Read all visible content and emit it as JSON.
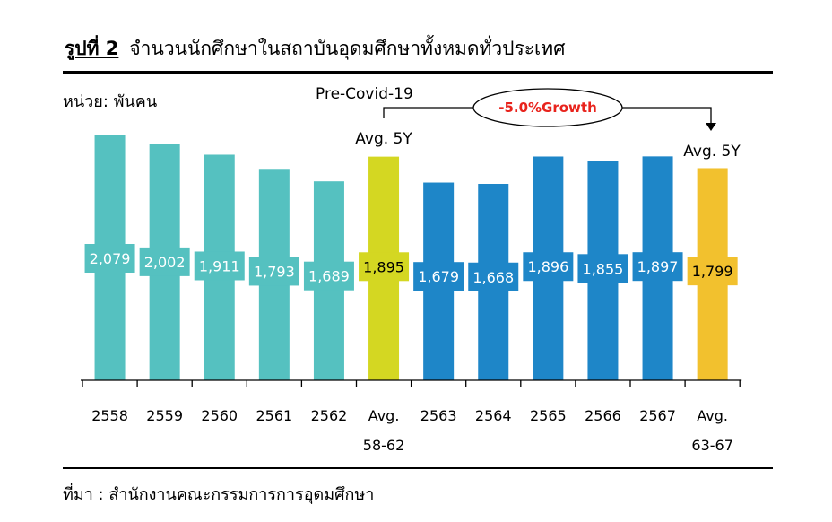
{
  "header": {
    "figure_number": "รูปที่ 2",
    "title": "จำนวนนักศึกษาในสถาบันอุดมศึกษาทั้งหมดทั่วประเทศ"
  },
  "unit_label": "หน่วย: พันคน",
  "source": "ที่มา : สำนักงานคณะกรรมการการอุดมศึกษา",
  "chart_data": {
    "type": "bar",
    "title": "จำนวนนักศึกษาในสถาบันอุดมศึกษาทั้งหมดทั่วประเทศ",
    "ylabel": "หน่วย: พันคน",
    "xlabel": "",
    "ylim": [
      0,
      2200
    ],
    "grid": false,
    "legend": "none",
    "categories": [
      "2558",
      "2559",
      "2560",
      "2561",
      "2562",
      "Avg. 58-62",
      "2563",
      "2564",
      "2565",
      "2566",
      "2567",
      "Avg. 63-67"
    ],
    "tick_lines": [
      [
        "2558"
      ],
      [
        "2559"
      ],
      [
        "2560"
      ],
      [
        "2561"
      ],
      [
        "2562"
      ],
      [
        "Avg.",
        "58-62"
      ],
      [
        "2563"
      ],
      [
        "2564"
      ],
      [
        "2565"
      ],
      [
        "2566"
      ],
      [
        "2567"
      ],
      [
        "Avg.",
        "63-67"
      ]
    ],
    "values": [
      2079,
      2002,
      1911,
      1793,
      1689,
      1895,
      1679,
      1668,
      1896,
      1855,
      1897,
      1799
    ],
    "value_labels": [
      "2,079",
      "2,002",
      "1,911",
      "1,793",
      "1,689",
      "1,895",
      "1,679",
      "1,668",
      "1,896",
      "1,855",
      "1,897",
      "1,799"
    ],
    "bar_colors": [
      "#55c1c0",
      "#55c1c0",
      "#55c1c0",
      "#55c1c0",
      "#55c1c0",
      "#d4d722",
      "#1e86c8",
      "#1e86c8",
      "#1e86c8",
      "#1e86c8",
      "#1e86c8",
      "#f2c12e"
    ],
    "label_text_colors": [
      "#ffffff",
      "#ffffff",
      "#ffffff",
      "#ffffff",
      "#ffffff",
      "#000000",
      "#ffffff",
      "#ffffff",
      "#ffffff",
      "#ffffff",
      "#ffffff",
      "#000000"
    ],
    "annotations": {
      "pre_covid": "Pre-Covid-19",
      "avg_label_left": "Avg. 5Y",
      "avg_label_right": "Avg. 5Y",
      "growth": "-5.0%Growth",
      "growth_color": "#e8231c"
    }
  }
}
